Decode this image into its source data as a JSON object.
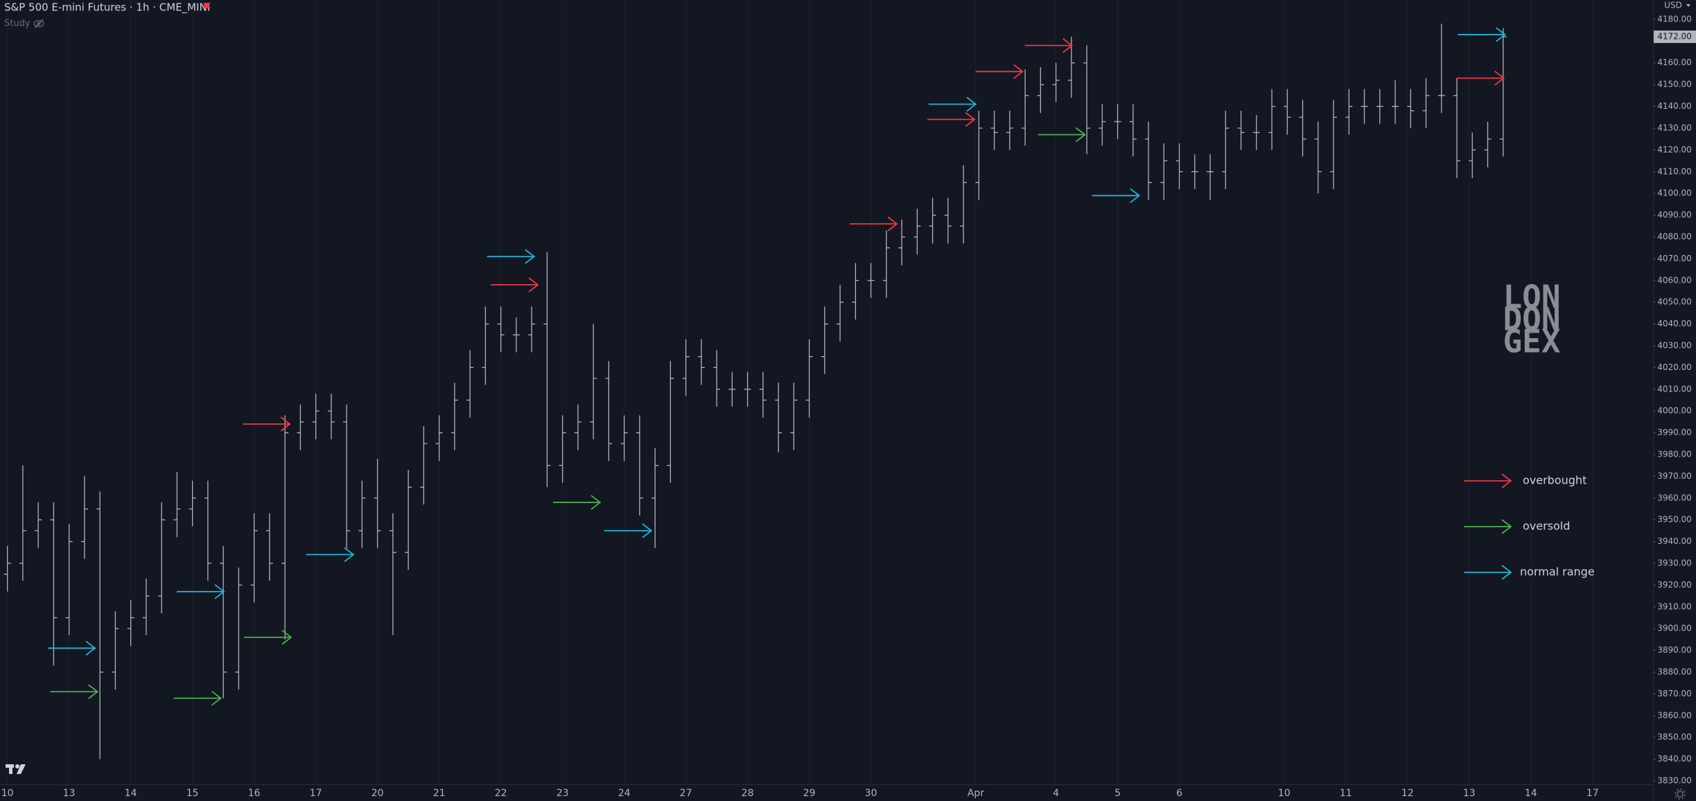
{
  "chart_data": {
    "type": "ohlc",
    "title": "S&P 500 E-mini Futures · 1h · CME_MINI",
    "study": "Study",
    "currency": "USD",
    "last_label": "4172.00",
    "watermark": [
      "LON",
      "DON",
      "GEX"
    ],
    "color": "#b2b5be",
    "grid": true,
    "legend": "right",
    "x": [
      0,
      0.25,
      0.5,
      0.75,
      1,
      1.25,
      1.5,
      1.75,
      2,
      2.25,
      2.5,
      2.75,
      3,
      3.25,
      3.5,
      3.75,
      4,
      4.25,
      4.5,
      4.75,
      5,
      5.25,
      5.5,
      5.75,
      6,
      6.25,
      6.5,
      6.75,
      7,
      7.25,
      7.5,
      7.75,
      8,
      8.25,
      8.5,
      8.75,
      9,
      9.25,
      9.5,
      9.75,
      10,
      10.25,
      10.5,
      10.75,
      11,
      11.25,
      11.5,
      11.75,
      12,
      12.25,
      12.5,
      12.75,
      13,
      13.25,
      13.5,
      13.75,
      14,
      14.25,
      14.5,
      14.75,
      15,
      15.25,
      15.5,
      15.75,
      16,
      16.25,
      16.5,
      16.75,
      17,
      17.25,
      17.5,
      17.75,
      18,
      18.25,
      18.5,
      18.75,
      19,
      19.25,
      19.5,
      19.75,
      20,
      20.25,
      20.5,
      20.75,
      21,
      21.25,
      21.5,
      21.75,
      22,
      22.25,
      22.5,
      22.75,
      23,
      23.25,
      23.5,
      23.75,
      24,
      24.25
    ],
    "open": [
      3925,
      3930,
      3945,
      3950,
      3905,
      3940,
      3955,
      3880,
      3900,
      3905,
      3915,
      3950,
      3955,
      3960,
      3930,
      3880,
      3920,
      3945,
      3930,
      3990,
      3995,
      4000,
      3995,
      3945,
      3960,
      3945,
      3935,
      3965,
      3985,
      3990,
      4005,
      4020,
      4040,
      4035,
      4035,
      4040,
      3975,
      3990,
      3995,
      4015,
      3985,
      3990,
      3960,
      3975,
      4015,
      4025,
      4020,
      4010,
      4010,
      4010,
      4005,
      3990,
      4005,
      4025,
      4040,
      4050,
      4060,
      4060,
      4075,
      4080,
      4085,
      4090,
      4085,
      4105,
      4130,
      4128,
      4130,
      4145,
      4150,
      4152,
      4160,
      4130,
      4133,
      4133,
      4125,
      4105,
      4115,
      4110,
      4110,
      4110,
      4130,
      4128,
      4128,
      4140,
      4135,
      4125,
      4110,
      4135,
      4140,
      4140,
      4140,
      4140,
      4138,
      4145,
      4145,
      4115,
      4120,
      4125
    ],
    "high": [
      3938,
      3975,
      3958,
      3958,
      3948,
      3970,
      3963,
      3908,
      3913,
      3923,
      3958,
      3972,
      3968,
      3968,
      3938,
      3928,
      3953,
      3953,
      3998,
      4003,
      4008,
      4008,
      4003,
      3968,
      3978,
      3953,
      3973,
      3993,
      3998,
      4013,
      4028,
      4048,
      4048,
      4043,
      4048,
      4073,
      3998,
      4003,
      4040,
      4023,
      3998,
      3998,
      3983,
      4023,
      4033,
      4033,
      4028,
      4018,
      4018,
      4018,
      4013,
      4013,
      4033,
      4048,
      4058,
      4068,
      4068,
      4083,
      4088,
      4093,
      4098,
      4098,
      4113,
      4138,
      4138,
      4138,
      4157,
      4158,
      4160,
      4172,
      4168,
      4141,
      4141,
      4141,
      4133,
      4123,
      4123,
      4118,
      4118,
      4138,
      4138,
      4136,
      4148,
      4148,
      4143,
      4133,
      4143,
      4148,
      4148,
      4148,
      4152,
      4148,
      4153,
      4178,
      4153,
      4128,
      4133,
      4176
    ],
    "low": [
      3917,
      3922,
      3937,
      3883,
      3897,
      3932,
      3840,
      3872,
      3892,
      3897,
      3907,
      3942,
      3947,
      3922,
      3868,
      3872,
      3912,
      3922,
      3895,
      3982,
      3987,
      3987,
      3937,
      3937,
      3937,
      3897,
      3927,
      3957,
      3977,
      3982,
      3997,
      4012,
      4027,
      4027,
      4027,
      3965,
      3967,
      3982,
      3987,
      3977,
      3977,
      3952,
      3937,
      3967,
      4007,
      4012,
      4002,
      4002,
      4002,
      3997,
      3981,
      3982,
      3997,
      4017,
      4032,
      4042,
      4052,
      4052,
      4067,
      4072,
      4077,
      4077,
      4077,
      4097,
      4120,
      4120,
      4122,
      4137,
      4142,
      4144,
      4118,
      4122,
      4125,
      4117,
      4097,
      4097,
      4102,
      4102,
      4097,
      4102,
      4120,
      4120,
      4120,
      4127,
      4117,
      4100,
      4102,
      4127,
      4132,
      4132,
      4132,
      4130,
      4130,
      4137,
      4107,
      4107,
      4112,
      4117
    ],
    "close": [
      3930,
      3945,
      3950,
      3905,
      3940,
      3955,
      3880,
      3900,
      3905,
      3915,
      3950,
      3955,
      3960,
      3930,
      3880,
      3920,
      3945,
      3930,
      3990,
      3995,
      4000,
      3995,
      3945,
      3960,
      3945,
      3935,
      3965,
      3985,
      3990,
      4005,
      4020,
      4040,
      4035,
      4035,
      4040,
      3975,
      3990,
      3995,
      4015,
      3985,
      3990,
      3960,
      3975,
      4015,
      4025,
      4020,
      4010,
      4010,
      4010,
      4005,
      3990,
      4005,
      4025,
      4040,
      4050,
      4060,
      4060,
      4075,
      4080,
      4085,
      4090,
      4085,
      4105,
      4130,
      4128,
      4130,
      4145,
      4150,
      4152,
      4160,
      4130,
      4133,
      4133,
      4125,
      4105,
      4115,
      4110,
      4110,
      4110,
      4130,
      4128,
      4128,
      4140,
      4135,
      4125,
      4110,
      4135,
      4140,
      4140,
      4140,
      4140,
      4138,
      4145,
      4145,
      4115,
      4120,
      4125,
      4172
    ],
    "signals": [
      {
        "name": "overbought",
        "color": "#f23645",
        "x": [
          4.58,
          8.6,
          14.42,
          15.68,
          16.46,
          17.26,
          24.26
        ],
        "y": [
          3994,
          4058,
          4086,
          4134,
          4156,
          4168,
          4153
        ]
      },
      {
        "name": "oversold",
        "color": "#4caf50",
        "x": [
          1.46,
          3.46,
          4.6,
          9.61,
          17.47
        ],
        "y": [
          3871,
          3868,
          3896,
          3958,
          4127
        ]
      },
      {
        "name": "normal range",
        "color": "#22b5d8",
        "x": [
          1.42,
          3.51,
          5.61,
          8.54,
          10.44,
          15.7,
          18.35,
          24.28
        ],
        "y": [
          3891,
          3917,
          3934,
          4071,
          3945,
          4141,
          4099,
          4173
        ]
      }
    ],
    "xlim": [
      -0.12,
      26.68
    ],
    "ylim": [
      3828.4,
      4188.9
    ],
    "xticks": [
      {
        "value": 0,
        "label": "10"
      },
      {
        "value": 1,
        "label": "13"
      },
      {
        "value": 2,
        "label": "14"
      },
      {
        "value": 3,
        "label": "15"
      },
      {
        "value": 4,
        "label": "16"
      },
      {
        "value": 5,
        "label": "17"
      },
      {
        "value": 6,
        "label": "20"
      },
      {
        "value": 7,
        "label": "21"
      },
      {
        "value": 8,
        "label": "22"
      },
      {
        "value": 9,
        "label": "23"
      },
      {
        "value": 10,
        "label": "24"
      },
      {
        "value": 11,
        "label": "27"
      },
      {
        "value": 12,
        "label": "28"
      },
      {
        "value": 13,
        "label": "29"
      },
      {
        "value": 14,
        "label": "30"
      },
      {
        "value": 15.7,
        "label": "Apr"
      },
      {
        "value": 17,
        "label": "4"
      },
      {
        "value": 18,
        "label": "5"
      },
      {
        "value": 19,
        "label": "6"
      },
      {
        "value": 20.7,
        "label": "10"
      },
      {
        "value": 21.7,
        "label": "11"
      },
      {
        "value": 22.7,
        "label": "12"
      },
      {
        "value": 23.7,
        "label": "13"
      },
      {
        "value": 24.7,
        "label": "14"
      },
      {
        "value": 25.7,
        "label": "17"
      }
    ],
    "yticks": [
      {
        "value": 3830,
        "label": "3830.00"
      },
      {
        "value": 3840,
        "label": "3840.00"
      },
      {
        "value": 3850,
        "label": "3850.00"
      },
      {
        "value": 3860,
        "label": "3860.00"
      },
      {
        "value": 3870,
        "label": "3870.00"
      },
      {
        "value": 3880,
        "label": "3880.00"
      },
      {
        "value": 3890,
        "label": "3890.00"
      },
      {
        "value": 3900,
        "label": "3900.00"
      },
      {
        "value": 3910,
        "label": "3910.00"
      },
      {
        "value": 3920,
        "label": "3920.00"
      },
      {
        "value": 3930,
        "label": "3930.00"
      },
      {
        "value": 3940,
        "label": "3940.00"
      },
      {
        "value": 3950,
        "label": "3950.00"
      },
      {
        "value": 3960,
        "label": "3960.00"
      },
      {
        "value": 3970,
        "label": "3970.00"
      },
      {
        "value": 3980,
        "label": "3980.00"
      },
      {
        "value": 3990,
        "label": "3990.00"
      },
      {
        "value": 4000,
        "label": "4000.00"
      },
      {
        "value": 4010,
        "label": "4010.00"
      },
      {
        "value": 4020,
        "label": "4020.00"
      },
      {
        "value": 4030,
        "label": "4030.00"
      },
      {
        "value": 4040,
        "label": "4040.00"
      },
      {
        "value": 4050,
        "label": "4050.00"
      },
      {
        "value": 4060,
        "label": "4060.00"
      },
      {
        "value": 4070,
        "label": "4070.00"
      },
      {
        "value": 4080,
        "label": "4080.00"
      },
      {
        "value": 4090,
        "label": "4090.00"
      },
      {
        "value": 4100,
        "label": "4100.00"
      },
      {
        "value": 4110,
        "label": "4110.00"
      },
      {
        "value": 4120,
        "label": "4120.00"
      },
      {
        "value": 4130,
        "label": "4130.00"
      },
      {
        "value": 4140,
        "label": "4140.00"
      },
      {
        "value": 4150,
        "label": "4150.00"
      },
      {
        "value": 4160,
        "label": "4160.00"
      },
      {
        "value": 4180,
        "label": "4180.00"
      }
    ]
  }
}
